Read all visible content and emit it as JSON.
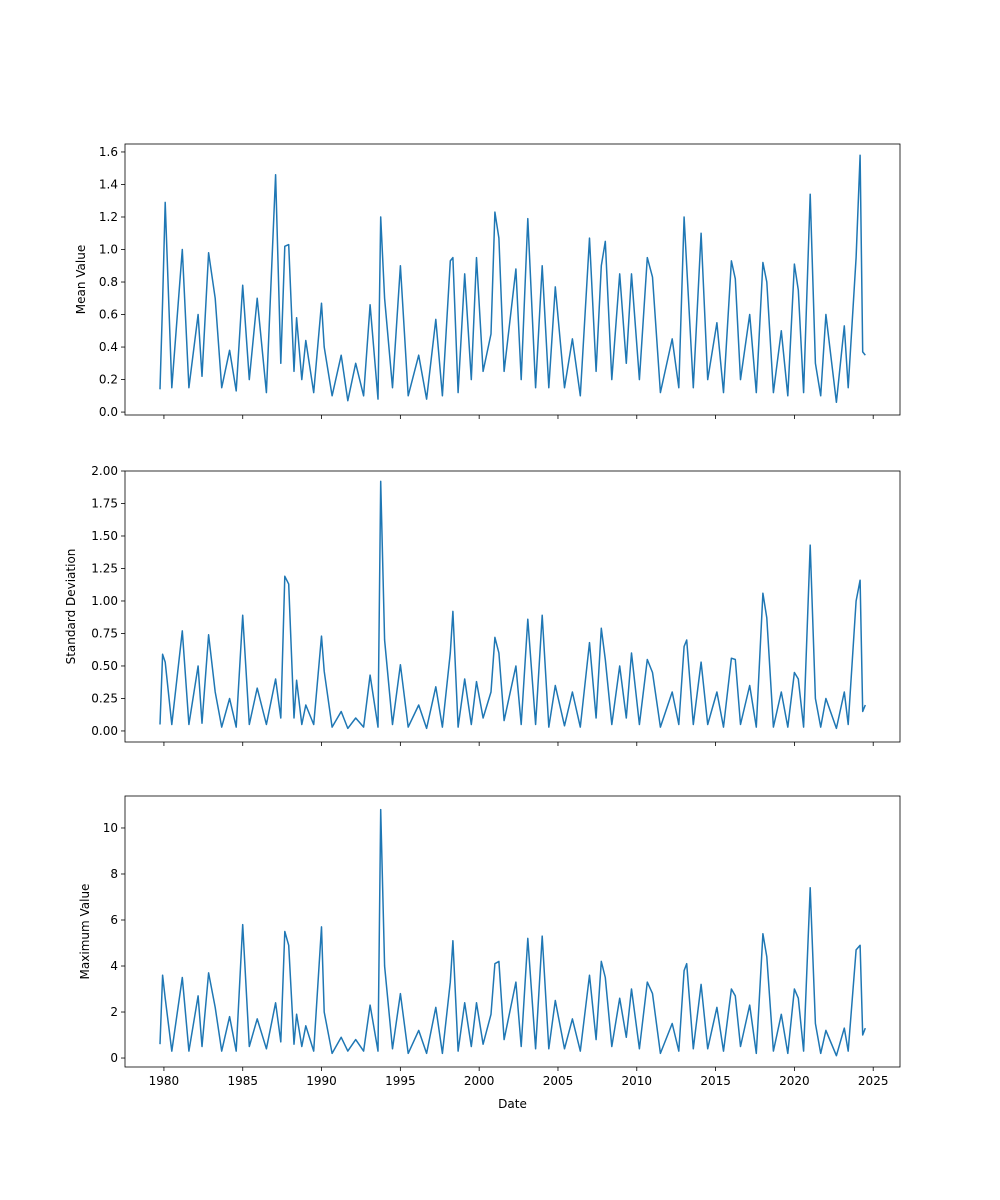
{
  "chart_data": [
    {
      "type": "line",
      "ylabel": "Mean Value",
      "xlabel": "",
      "ylim": [
        -0.018,
        1.649
      ],
      "yticks": [
        "0.0",
        "0.2",
        "0.4",
        "0.6",
        "0.8",
        "1.0",
        "1.2",
        "1.4",
        "1.6"
      ],
      "key": "mean"
    },
    {
      "type": "line",
      "ylabel": "Standard Deviation",
      "xlabel": "",
      "ylim": [
        -0.085,
        2.0
      ],
      "yticks": [
        "0.00",
        "0.25",
        "0.50",
        "0.75",
        "1.00",
        "1.25",
        "1.50",
        "1.75",
        "2.00"
      ],
      "key": "std"
    },
    {
      "type": "line",
      "ylabel": "Maximum Value",
      "xlabel": "Date",
      "ylim": [
        -0.39,
        11.39
      ],
      "yticks": [
        "0",
        "2",
        "4",
        "6",
        "8",
        "10"
      ],
      "key": "max"
    }
  ],
  "x_axis": {
    "type": "date",
    "range": [
      1977.53,
      2026.7
    ],
    "ticks": [
      "1980",
      "1985",
      "1990",
      "1995",
      "2000",
      "2005",
      "2010",
      "2015",
      "2020",
      "2025"
    ]
  },
  "line_color": "#1f77b4",
  "columns": [
    "date",
    "mean",
    "std",
    "max"
  ],
  "rows": [
    [
      "1979-10",
      0.14,
      0.05,
      0.6
    ],
    [
      "1979-12",
      0.68,
      0.59,
      3.6
    ],
    [
      "1980-02",
      1.29,
      0.53,
      2.6
    ],
    [
      "1980-07",
      0.15,
      0.05,
      0.3
    ],
    [
      "1981-03",
      1.0,
      0.77,
      3.5
    ],
    [
      "1981-08",
      0.15,
      0.05,
      0.3
    ],
    [
      "1982-03",
      0.6,
      0.5,
      2.7
    ],
    [
      "1982-06",
      0.22,
      0.06,
      0.5
    ],
    [
      "1982-11",
      0.98,
      0.74,
      3.7
    ],
    [
      "1983-04",
      0.7,
      0.3,
      2.2
    ],
    [
      "1983-09",
      0.15,
      0.03,
      0.3
    ],
    [
      "1984-03",
      0.38,
      0.25,
      1.8
    ],
    [
      "1984-08",
      0.13,
      0.03,
      0.3
    ],
    [
      "1985-01",
      0.78,
      0.89,
      5.8
    ],
    [
      "1985-06",
      0.2,
      0.05,
      0.5
    ],
    [
      "1985-12",
      0.7,
      0.33,
      1.7
    ],
    [
      "1986-07",
      0.12,
      0.05,
      0.4
    ],
    [
      "1987-02",
      1.46,
      0.4,
      2.4
    ],
    [
      "1987-06",
      0.3,
      0.1,
      0.7
    ],
    [
      "1987-09",
      1.02,
      1.19,
      5.5
    ],
    [
      "1987-12",
      1.03,
      1.13,
      4.9
    ],
    [
      "1988-04",
      0.25,
      0.1,
      0.6
    ],
    [
      "1988-06",
      0.58,
      0.39,
      1.9
    ],
    [
      "1988-10",
      0.2,
      0.05,
      0.5
    ],
    [
      "1989-01",
      0.44,
      0.2,
      1.4
    ],
    [
      "1989-07",
      0.12,
      0.05,
      0.3
    ],
    [
      "1990-01",
      0.67,
      0.73,
      5.7
    ],
    [
      "1990-03",
      0.4,
      0.46,
      2.0
    ],
    [
      "1990-09",
      0.1,
      0.03,
      0.2
    ],
    [
      "1991-04",
      0.35,
      0.15,
      0.9
    ],
    [
      "1991-09",
      0.07,
      0.02,
      0.3
    ],
    [
      "1992-03",
      0.3,
      0.1,
      0.8
    ],
    [
      "1992-09",
      0.1,
      0.03,
      0.3
    ],
    [
      "1993-02",
      0.66,
      0.43,
      2.3
    ],
    [
      "1993-08",
      0.08,
      0.03,
      0.3
    ],
    [
      "1993-10",
      1.2,
      1.92,
      10.8
    ],
    [
      "1994-01",
      0.7,
      0.7,
      4.0
    ],
    [
      "1994-07",
      0.15,
      0.05,
      0.4
    ],
    [
      "1995-01",
      0.9,
      0.51,
      2.8
    ],
    [
      "1995-07",
      0.1,
      0.03,
      0.2
    ],
    [
      "1996-03",
      0.35,
      0.2,
      1.2
    ],
    [
      "1996-09",
      0.08,
      0.02,
      0.2
    ],
    [
      "1997-04",
      0.57,
      0.34,
      2.2
    ],
    [
      "1997-09",
      0.1,
      0.03,
      0.2
    ],
    [
      "1998-03",
      0.93,
      0.6,
      3.3
    ],
    [
      "1998-05",
      0.95,
      0.92,
      5.1
    ],
    [
      "1998-09",
      0.12,
      0.03,
      0.3
    ],
    [
      "1999-02",
      0.85,
      0.4,
      2.4
    ],
    [
      "1999-07",
      0.2,
      0.05,
      0.5
    ],
    [
      "1999-11",
      0.95,
      0.38,
      2.4
    ],
    [
      "2000-04",
      0.25,
      0.1,
      0.6
    ],
    [
      "2000-10",
      0.48,
      0.3,
      1.9
    ],
    [
      "2001-01",
      1.23,
      0.72,
      4.1
    ],
    [
      "2001-04",
      1.07,
      0.6,
      4.2
    ],
    [
      "2001-08",
      0.25,
      0.08,
      0.8
    ],
    [
      "2002-05",
      0.88,
      0.5,
      3.3
    ],
    [
      "2002-09",
      0.2,
      0.05,
      0.5
    ],
    [
      "2003-02",
      1.19,
      0.86,
      5.2
    ],
    [
      "2003-08",
      0.15,
      0.05,
      0.4
    ],
    [
      "2004-01",
      0.9,
      0.89,
      5.3
    ],
    [
      "2004-06",
      0.15,
      0.03,
      0.4
    ],
    [
      "2004-11",
      0.77,
      0.35,
      2.5
    ],
    [
      "2005-06",
      0.15,
      0.04,
      0.4
    ],
    [
      "2005-12",
      0.45,
      0.3,
      1.7
    ],
    [
      "2006-06",
      0.1,
      0.03,
      0.3
    ],
    [
      "2007-01",
      1.07,
      0.68,
      3.6
    ],
    [
      "2007-06",
      0.25,
      0.1,
      0.8
    ],
    [
      "2007-10",
      0.9,
      0.79,
      4.2
    ],
    [
      "2008-01",
      1.05,
      0.55,
      3.5
    ],
    [
      "2008-06",
      0.2,
      0.05,
      0.5
    ],
    [
      "2008-12",
      0.85,
      0.5,
      2.6
    ],
    [
      "2009-05",
      0.3,
      0.1,
      0.9
    ],
    [
      "2009-09",
      0.85,
      0.6,
      3.0
    ],
    [
      "2010-03",
      0.2,
      0.05,
      0.4
    ],
    [
      "2010-09",
      0.95,
      0.55,
      3.3
    ],
    [
      "2011-01",
      0.83,
      0.45,
      2.8
    ],
    [
      "2011-07",
      0.12,
      0.03,
      0.2
    ],
    [
      "2012-04",
      0.45,
      0.3,
      1.5
    ],
    [
      "2012-09",
      0.15,
      0.05,
      0.3
    ],
    [
      "2013-01",
      1.2,
      0.65,
      3.8
    ],
    [
      "2013-03",
      0.9,
      0.7,
      4.1
    ],
    [
      "2013-08",
      0.15,
      0.05,
      0.4
    ],
    [
      "2014-02",
      1.1,
      0.53,
      3.2
    ],
    [
      "2014-07",
      0.2,
      0.05,
      0.4
    ],
    [
      "2015-02",
      0.55,
      0.3,
      2.2
    ],
    [
      "2015-07",
      0.12,
      0.03,
      0.3
    ],
    [
      "2016-01",
      0.93,
      0.56,
      3.0
    ],
    [
      "2016-04",
      0.82,
      0.55,
      2.7
    ],
    [
      "2016-08",
      0.2,
      0.05,
      0.5
    ],
    [
      "2017-03",
      0.6,
      0.35,
      2.3
    ],
    [
      "2017-08",
      0.12,
      0.03,
      0.2
    ],
    [
      "2018-01",
      0.92,
      1.06,
      5.4
    ],
    [
      "2018-04",
      0.8,
      0.87,
      4.4
    ],
    [
      "2018-09",
      0.12,
      0.03,
      0.3
    ],
    [
      "2019-03",
      0.5,
      0.3,
      1.9
    ],
    [
      "2019-08",
      0.1,
      0.03,
      0.2
    ],
    [
      "2020-01",
      0.91,
      0.45,
      3.0
    ],
    [
      "2020-04",
      0.75,
      0.4,
      2.6
    ],
    [
      "2020-08",
      0.12,
      0.03,
      0.3
    ],
    [
      "2021-01",
      1.34,
      1.43,
      7.4
    ],
    [
      "2021-05",
      0.3,
      0.25,
      1.5
    ],
    [
      "2021-09",
      0.1,
      0.03,
      0.2
    ],
    [
      "2022-01",
      0.6,
      0.25,
      1.2
    ],
    [
      "2022-09",
      0.06,
      0.02,
      0.1
    ],
    [
      "2023-03",
      0.53,
      0.3,
      1.3
    ],
    [
      "2023-06",
      0.15,
      0.05,
      0.3
    ],
    [
      "2023-12",
      0.95,
      1.0,
      4.7
    ],
    [
      "2024-03",
      1.58,
      1.16,
      4.9
    ],
    [
      "2024-05",
      0.37,
      0.15,
      1.0
    ],
    [
      "2024-07",
      0.35,
      0.2,
      1.3
    ]
  ]
}
